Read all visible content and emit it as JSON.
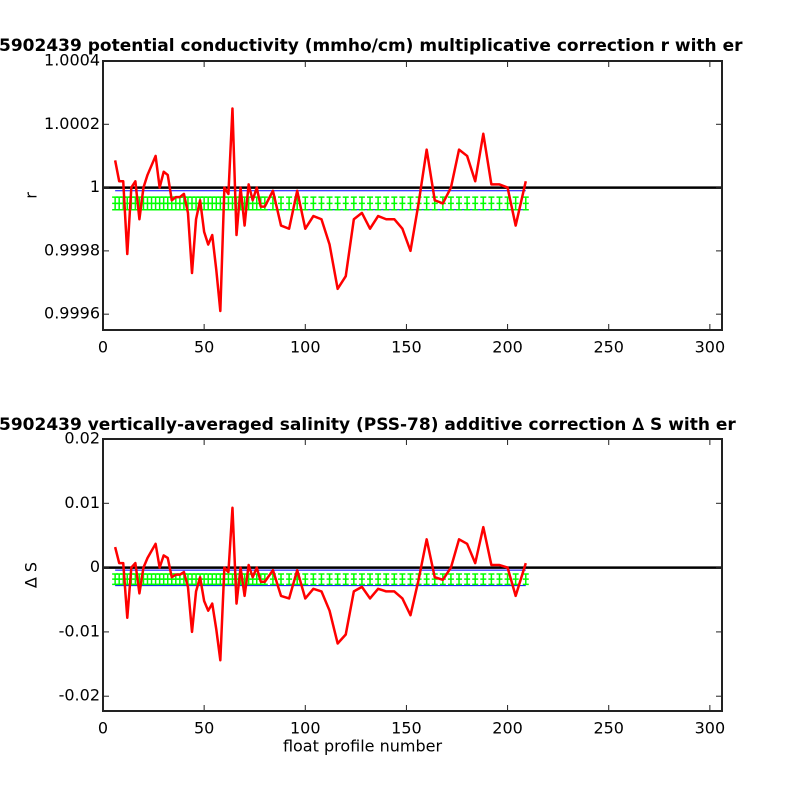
{
  "chart_data": [
    {
      "type": "line",
      "title": "5902439 potential conductivity (mmho/cm) multiplicative correction r with er",
      "ylabel": "r",
      "xlim": [
        0,
        306
      ],
      "xticks": [
        0,
        50,
        100,
        150,
        200,
        250,
        300
      ],
      "ylim": [
        0.99955,
        1.0004
      ],
      "yticks": [
        0.9996,
        0.9998,
        1,
        1.0002,
        1.0004
      ],
      "x": [
        6,
        8,
        10,
        12,
        14,
        16,
        18,
        20,
        22,
        24,
        26,
        28,
        30,
        32,
        34,
        36,
        38,
        40,
        42,
        44,
        46,
        48,
        50,
        52,
        54,
        56,
        58,
        60,
        62,
        64,
        66,
        68,
        70,
        72,
        74,
        76,
        78,
        80,
        84,
        88,
        92,
        96,
        100,
        104,
        108,
        112,
        116,
        120,
        124,
        128,
        132,
        136,
        140,
        144,
        148,
        152,
        156,
        160,
        164,
        168,
        172,
        176,
        180,
        184,
        188,
        192,
        196,
        200,
        204,
        209
      ],
      "series": [
        {
          "color": "#ff0000",
          "values": [
            1.000086,
            1.00002,
            1.00002,
            0.99979,
            1.0,
            1.00002,
            0.9999,
            1.0,
            1.00004,
            1.00007,
            1.0001,
            1.0,
            1.00005,
            1.00004,
            0.99996,
            0.99997,
            0.99997,
            0.99998,
            0.99992,
            0.99973,
            0.9999,
            0.99996,
            0.99986,
            0.99982,
            0.99985,
            0.99974,
            0.99961,
            1.0,
            0.99998,
            1.00025,
            0.99985,
            1.0,
            0.99988,
            1.00001,
            0.99996,
            1.0,
            0.99994,
            0.99994,
            0.99999,
            0.99988,
            0.99987,
            0.99999,
            0.99987,
            0.99991,
            0.9999,
            0.99982,
            0.99968,
            0.99972,
            0.9999,
            0.99992,
            0.99987,
            0.99991,
            0.9999,
            0.9999,
            0.99987,
            0.9998,
            0.99995,
            1.00012,
            0.99996,
            0.99995,
            1.0,
            1.00012,
            1.0001,
            1.00002,
            1.00017,
            1.00001,
            1.00001,
            1.0,
            0.99988,
            1.00002
          ]
        }
      ],
      "band": {
        "color": "#00ff00",
        "center": 0.99995,
        "error": 2e-05
      },
      "bounds": {
        "color": "#0000ff",
        "values": [
          0.99993,
          0.99999
        ]
      },
      "reference": {
        "color": "#000000",
        "value": 1
      }
    },
    {
      "type": "line",
      "title": "5902439 vertically-averaged salinity (PSS-78) additive correction ∆ S with er",
      "ylabel": "∆ S",
      "xlabel": "float profile number",
      "xlim": [
        0,
        306
      ],
      "xticks": [
        0,
        50,
        100,
        150,
        200,
        250,
        300
      ],
      "ylim": [
        -0.0223,
        0.02
      ],
      "yticks": [
        -0.02,
        -0.01,
        0,
        0.01,
        0.02
      ],
      "x": [
        6,
        8,
        10,
        12,
        14,
        16,
        18,
        20,
        22,
        24,
        26,
        28,
        30,
        32,
        34,
        36,
        38,
        40,
        42,
        44,
        46,
        48,
        50,
        52,
        54,
        56,
        58,
        60,
        62,
        64,
        66,
        68,
        70,
        72,
        74,
        76,
        78,
        80,
        84,
        88,
        92,
        96,
        100,
        104,
        108,
        112,
        116,
        120,
        124,
        128,
        132,
        136,
        140,
        144,
        148,
        152,
        156,
        160,
        164,
        168,
        172,
        176,
        180,
        184,
        188,
        192,
        196,
        200,
        204,
        209
      ],
      "series": [
        {
          "color": "#ff0000",
          "values": [
            0.0032,
            0.0007,
            0.0007,
            -0.0078,
            0,
            0.0007,
            -0.004,
            0,
            0.0015,
            0.0026,
            0.0037,
            0,
            0.0019,
            0.0015,
            -0.0015,
            -0.0011,
            -0.0011,
            -0.0007,
            -0.003,
            -0.01,
            -0.0037,
            -0.0015,
            -0.0052,
            -0.0067,
            -0.0056,
            -0.0096,
            -0.0144,
            0,
            -0.0007,
            0.0093,
            -0.0056,
            0,
            -0.0044,
            0.0004,
            -0.0015,
            0,
            -0.0022,
            -0.0022,
            -0.0004,
            -0.0044,
            -0.0048,
            -0.0004,
            -0.0048,
            -0.0033,
            -0.0037,
            -0.0067,
            -0.0118,
            -0.0104,
            -0.0037,
            -0.003,
            -0.0048,
            -0.0033,
            -0.0037,
            -0.0037,
            -0.0048,
            -0.0074,
            -0.0019,
            0.0044,
            -0.0015,
            -0.0019,
            0,
            0.0044,
            0.0037,
            0.0007,
            0.0063,
            0.0004,
            0.0004,
            0,
            -0.0044,
            0.0007
          ]
        }
      ],
      "band": {
        "color": "#00ff00",
        "center": -0.0018,
        "error": 0.0008
      },
      "bounds": {
        "color": "#0000ff",
        "values": [
          -0.0028,
          -0.0004
        ]
      },
      "reference": {
        "color": "#000000",
        "value": 0
      }
    }
  ]
}
